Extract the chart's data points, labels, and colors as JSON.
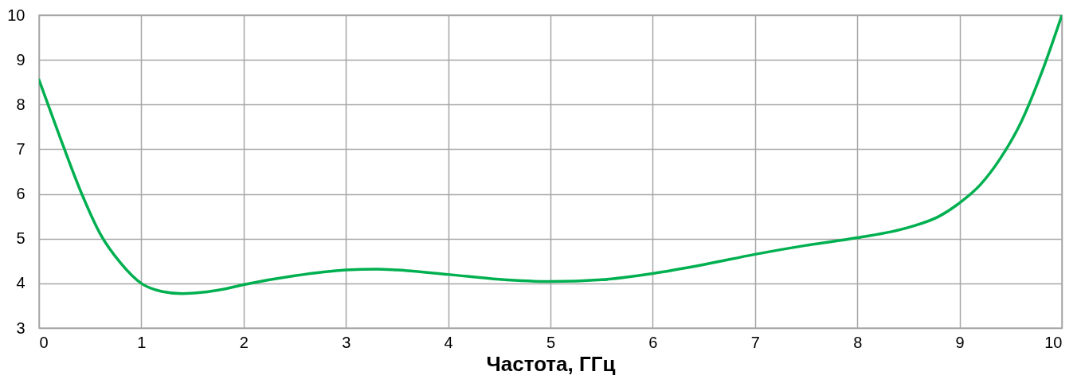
{
  "chart_data": {
    "type": "line",
    "xlabel": "Частота, ГГц",
    "x": [
      0,
      0.2,
      0.4,
      0.6,
      0.8,
      1.0,
      1.2,
      1.4,
      1.6,
      1.8,
      2.0,
      2.5,
      3.0,
      3.3,
      3.5,
      4.0,
      4.5,
      5.0,
      5.5,
      6.0,
      6.5,
      7.0,
      7.5,
      8.0,
      8.5,
      8.8,
      9.0,
      9.2,
      9.4,
      9.6,
      9.8,
      10
    ],
    "series": [
      {
        "color": "#00b050",
        "values": [
          8.55,
          7.3,
          6.1,
          5.1,
          4.45,
          4.0,
          3.82,
          3.77,
          3.8,
          3.87,
          3.97,
          4.17,
          4.3,
          4.32,
          4.3,
          4.2,
          4.09,
          4.04,
          4.08,
          4.22,
          4.42,
          4.65,
          4.85,
          5.02,
          5.25,
          5.5,
          5.8,
          6.2,
          6.8,
          7.6,
          8.7,
          10
        ]
      }
    ],
    "xlim": [
      0,
      10
    ],
    "xticks": [
      0,
      1,
      2,
      3,
      4,
      5,
      6,
      7,
      8,
      9,
      10
    ],
    "ylim": [
      3,
      10
    ],
    "yticks": [
      3,
      4,
      5,
      6,
      7,
      8,
      9,
      10
    ],
    "grid": true,
    "marker": "none",
    "line_style": "solid"
  }
}
